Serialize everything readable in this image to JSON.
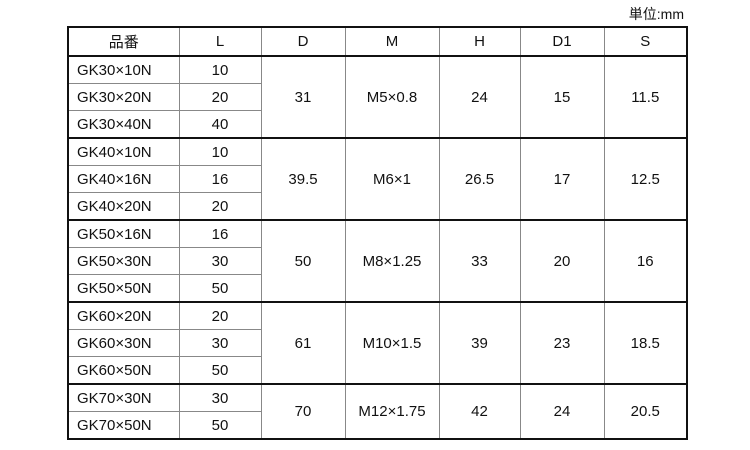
{
  "unit_label": "単位:mm",
  "headers": [
    "品番",
    "L",
    "D",
    "M",
    "H",
    "D1",
    "S"
  ],
  "groups": [
    {
      "D": "31",
      "M": "M5×0.8",
      "H": "24",
      "D1": "15",
      "S": "11.5",
      "items": [
        {
          "name": "GK30×10N",
          "L": "10"
        },
        {
          "name": "GK30×20N",
          "L": "20"
        },
        {
          "name": "GK30×40N",
          "L": "40"
        }
      ]
    },
    {
      "D": "39.5",
      "M": "M6×1",
      "H": "26.5",
      "D1": "17",
      "S": "12.5",
      "items": [
        {
          "name": "GK40×10N",
          "L": "10"
        },
        {
          "name": "GK40×16N",
          "L": "16"
        },
        {
          "name": "GK40×20N",
          "L": "20"
        }
      ]
    },
    {
      "D": "50",
      "M": "M8×1.25",
      "H": "33",
      "D1": "20",
      "S": "16",
      "items": [
        {
          "name": "GK50×16N",
          "L": "16"
        },
        {
          "name": "GK50×30N",
          "L": "30"
        },
        {
          "name": "GK50×50N",
          "L": "50"
        }
      ]
    },
    {
      "D": "61",
      "M": "M10×1.5",
      "H": "39",
      "D1": "23",
      "S": "18.5",
      "items": [
        {
          "name": "GK60×20N",
          "L": "20"
        },
        {
          "name": "GK60×30N",
          "L": "30"
        },
        {
          "name": "GK60×50N",
          "L": "50"
        }
      ]
    },
    {
      "D": "70",
      "M": "M12×1.75",
      "H": "42",
      "D1": "24",
      "S": "20.5",
      "items": [
        {
          "name": "GK70×30N",
          "L": "30"
        },
        {
          "name": "GK70×50N",
          "L": "50"
        }
      ]
    }
  ]
}
